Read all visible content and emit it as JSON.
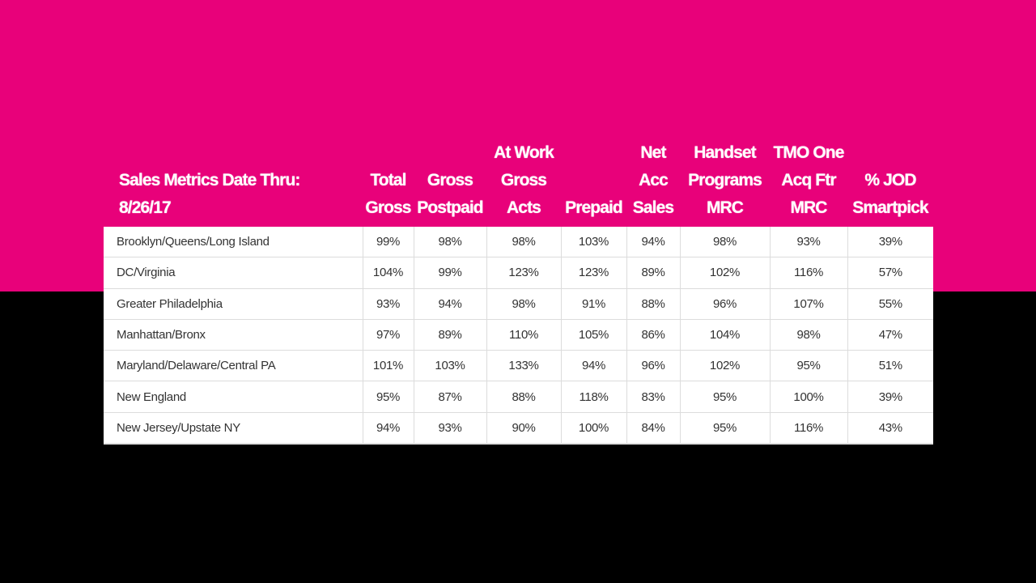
{
  "theme": {
    "accent": "#E8017A",
    "background": "#000000"
  },
  "header": {
    "title_line1": "Sales Metrics Date Thru:",
    "title_line2": "8/26/17",
    "columns": [
      {
        "lines": [
          "Total",
          "Gross"
        ]
      },
      {
        "lines": [
          "Gross",
          "Postpaid"
        ]
      },
      {
        "lines": [
          "At Work",
          "Gross",
          "Acts"
        ]
      },
      {
        "lines": [
          "Prepaid"
        ]
      },
      {
        "lines": [
          "Net",
          "Acc",
          "Sales"
        ]
      },
      {
        "lines": [
          "Handset",
          "Programs",
          "MRC"
        ]
      },
      {
        "lines": [
          "TMO One",
          "Acq Ftr",
          "MRC"
        ]
      },
      {
        "lines": [
          "% JOD",
          "Smartpick"
        ]
      }
    ]
  },
  "rows": [
    {
      "region": "Brooklyn/Queens/Long Island",
      "values": [
        "99%",
        "98%",
        "98%",
        "103%",
        "94%",
        "98%",
        "93%",
        "39%"
      ]
    },
    {
      "region": "DC/Virginia",
      "values": [
        "104%",
        "99%",
        "123%",
        "123%",
        "89%",
        "102%",
        "116%",
        "57%"
      ]
    },
    {
      "region": "Greater Philadelphia",
      "values": [
        "93%",
        "94%",
        "98%",
        "91%",
        "88%",
        "96%",
        "107%",
        "55%"
      ]
    },
    {
      "region": "Manhattan/Bronx",
      "values": [
        "97%",
        "89%",
        "110%",
        "105%",
        "86%",
        "104%",
        "98%",
        "47%"
      ]
    },
    {
      "region": "Maryland/Delaware/Central PA",
      "values": [
        "101%",
        "103%",
        "133%",
        "94%",
        "96%",
        "102%",
        "95%",
        "51%"
      ]
    },
    {
      "region": "New England",
      "values": [
        "95%",
        "87%",
        "88%",
        "118%",
        "83%",
        "95%",
        "100%",
        "39%"
      ]
    },
    {
      "region": "New Jersey/Upstate NY",
      "values": [
        "94%",
        "93%",
        "90%",
        "100%",
        "84%",
        "95%",
        "116%",
        "43%"
      ]
    }
  ]
}
